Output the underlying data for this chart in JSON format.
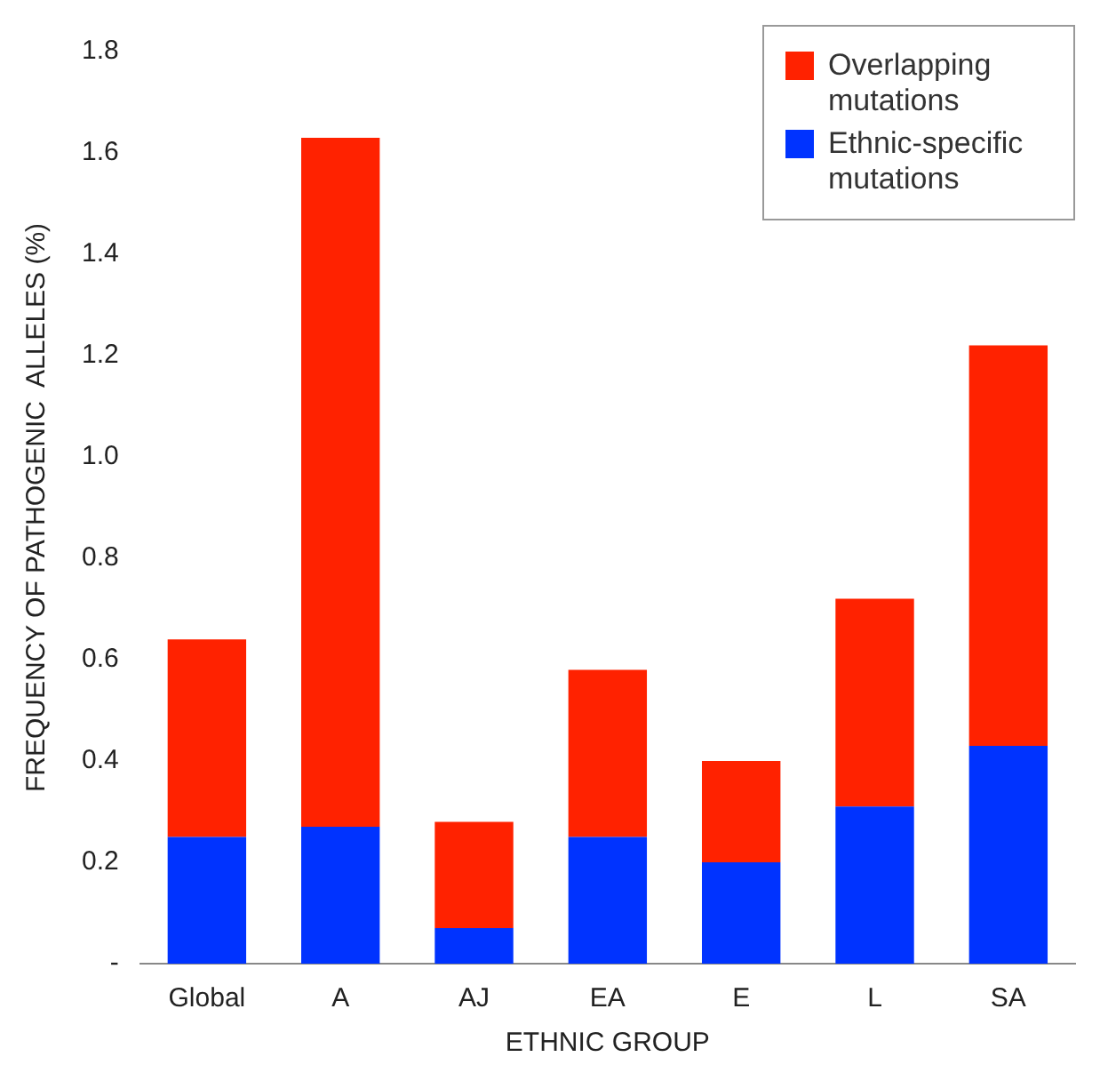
{
  "chart_data": {
    "type": "bar",
    "xlabel": "ETHNIC GROUP",
    "ylabel": "FREQUENCY OF PATHOGENIC  ALLELES (%)",
    "categories": [
      "Global",
      "A",
      "AJ",
      "EA",
      "E",
      "L",
      "SA"
    ],
    "stacked": true,
    "series": [
      {
        "name": "Ethnic-specific mutations",
        "color": "#0033ff",
        "values": [
          0.25,
          0.27,
          0.07,
          0.25,
          0.2,
          0.31,
          0.43
        ]
      },
      {
        "name": "Overlapping mutations",
        "color": "#ff2200",
        "values": [
          0.39,
          1.36,
          0.21,
          0.33,
          0.2,
          0.41,
          0.79
        ]
      }
    ],
    "ylim": [
      0,
      1.8
    ],
    "yticks": [
      {
        "value": 0,
        "label": "-"
      },
      0.2,
      0.4,
      0.6,
      0.8,
      {
        "value": 1,
        "label": "1.0"
      },
      1.2,
      1.4,
      1.6,
      1.8
    ],
    "grid": false,
    "legend": "top right"
  }
}
